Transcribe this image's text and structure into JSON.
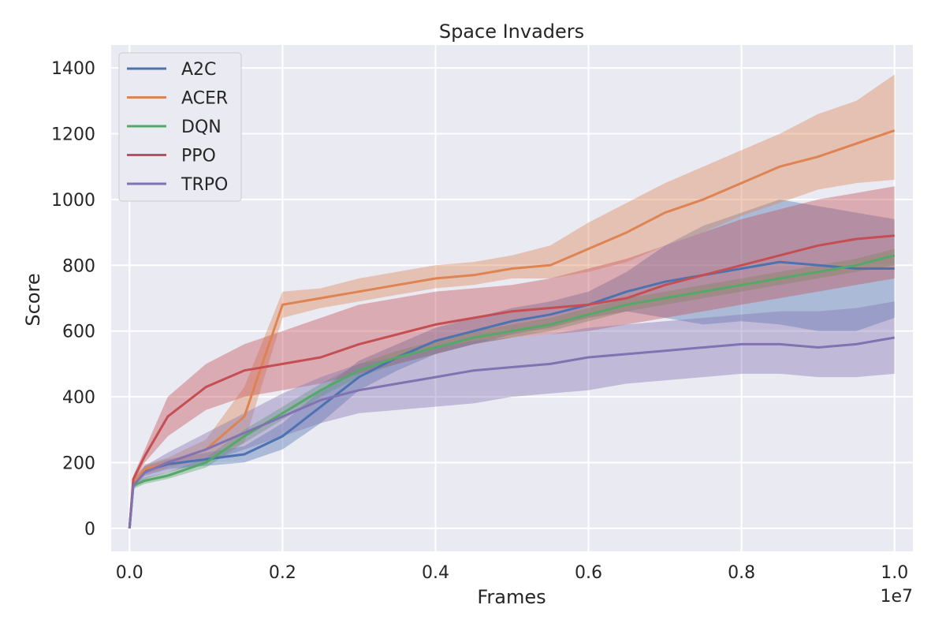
{
  "chart_data": {
    "type": "line",
    "title": "Space Invaders",
    "xlabel": "Frames",
    "ylabel": "Score",
    "x_scale_note": "1e7",
    "xlim": [
      -0.024,
      1.024
    ],
    "ylim": [
      -70,
      1470
    ],
    "x_ticks": [
      0.0,
      0.2,
      0.4,
      0.6,
      0.8,
      1.0
    ],
    "x_tick_labels": [
      "0.0",
      "0.2",
      "0.4",
      "0.6",
      "0.8",
      "1.0"
    ],
    "y_ticks": [
      0,
      200,
      400,
      600,
      800,
      1000,
      1200,
      1400
    ],
    "y_tick_labels": [
      "0",
      "200",
      "400",
      "600",
      "800",
      "1000",
      "1200",
      "1400"
    ],
    "grid": true,
    "legend_position": "top-left",
    "x": [
      0.0,
      0.005,
      0.02,
      0.05,
      0.1,
      0.15,
      0.2,
      0.25,
      0.3,
      0.35,
      0.4,
      0.45,
      0.5,
      0.55,
      0.6,
      0.65,
      0.7,
      0.75,
      0.8,
      0.85,
      0.9,
      0.95,
      1.0
    ],
    "series": [
      {
        "name": "A2C",
        "color": "#4c72b0",
        "mean": [
          0,
          140,
          175,
          195,
          210,
          225,
          280,
          370,
          460,
          520,
          570,
          600,
          630,
          650,
          680,
          720,
          750,
          770,
          790,
          810,
          800,
          790,
          790
        ],
        "lower": [
          0,
          130,
          160,
          180,
          190,
          200,
          240,
          320,
          420,
          480,
          530,
          560,
          590,
          610,
          640,
          660,
          640,
          620,
          630,
          620,
          600,
          600,
          640
        ],
        "upper": [
          0,
          150,
          190,
          210,
          230,
          250,
          320,
          420,
          510,
          560,
          610,
          640,
          670,
          690,
          720,
          780,
          860,
          920,
          960,
          1000,
          980,
          960,
          940
        ]
      },
      {
        "name": "ACER",
        "color": "#dd8452",
        "mean": [
          0,
          140,
          180,
          200,
          240,
          340,
          680,
          700,
          720,
          740,
          760,
          770,
          790,
          800,
          850,
          900,
          960,
          1000,
          1050,
          1100,
          1130,
          1170,
          1210
        ],
        "lower": [
          0,
          130,
          165,
          185,
          210,
          260,
          640,
          670,
          690,
          710,
          730,
          740,
          760,
          760,
          780,
          810,
          860,
          900,
          950,
          990,
          1030,
          1050,
          1060
        ],
        "upper": [
          0,
          150,
          195,
          215,
          270,
          430,
          720,
          730,
          760,
          780,
          800,
          810,
          830,
          860,
          930,
          990,
          1050,
          1100,
          1150,
          1200,
          1260,
          1300,
          1380
        ]
      },
      {
        "name": "DQN",
        "color": "#55a868",
        "mean": [
          0,
          130,
          145,
          160,
          200,
          280,
          350,
          420,
          480,
          520,
          550,
          580,
          600,
          620,
          650,
          680,
          700,
          720,
          740,
          760,
          780,
          800,
          830
        ],
        "lower": [
          0,
          120,
          135,
          150,
          185,
          260,
          330,
          400,
          460,
          500,
          530,
          560,
          580,
          600,
          630,
          660,
          680,
          700,
          720,
          740,
          760,
          780,
          800
        ],
        "upper": [
          0,
          140,
          155,
          170,
          215,
          300,
          370,
          440,
          500,
          540,
          570,
          600,
          620,
          640,
          670,
          700,
          720,
          740,
          760,
          780,
          800,
          820,
          850
        ]
      },
      {
        "name": "PPO",
        "color": "#c44e52",
        "mean": [
          0,
          150,
          220,
          340,
          430,
          480,
          500,
          520,
          560,
          590,
          620,
          640,
          660,
          670,
          680,
          700,
          740,
          770,
          800,
          830,
          860,
          880,
          890
        ],
        "lower": [
          0,
          140,
          200,
          280,
          360,
          400,
          420,
          440,
          470,
          500,
          530,
          560,
          580,
          590,
          600,
          620,
          640,
          660,
          680,
          700,
          720,
          740,
          760
        ],
        "upper": [
          0,
          160,
          240,
          400,
          500,
          560,
          600,
          640,
          680,
          700,
          720,
          730,
          740,
          760,
          790,
          820,
          860,
          900,
          940,
          970,
          1000,
          1020,
          1040
        ]
      },
      {
        "name": "TRPO",
        "color": "#8172b2",
        "mean": [
          0,
          130,
          170,
          200,
          240,
          290,
          340,
          390,
          420,
          440,
          460,
          480,
          490,
          500,
          520,
          530,
          540,
          550,
          560,
          560,
          550,
          560,
          580
        ],
        "lower": [
          0,
          120,
          150,
          170,
          200,
          240,
          280,
          320,
          350,
          360,
          370,
          380,
          400,
          410,
          420,
          440,
          450,
          460,
          470,
          470,
          460,
          460,
          470
        ],
        "upper": [
          0,
          140,
          190,
          230,
          290,
          350,
          410,
          460,
          500,
          520,
          550,
          570,
          580,
          590,
          610,
          620,
          630,
          640,
          650,
          660,
          660,
          670,
          690
        ]
      }
    ]
  }
}
